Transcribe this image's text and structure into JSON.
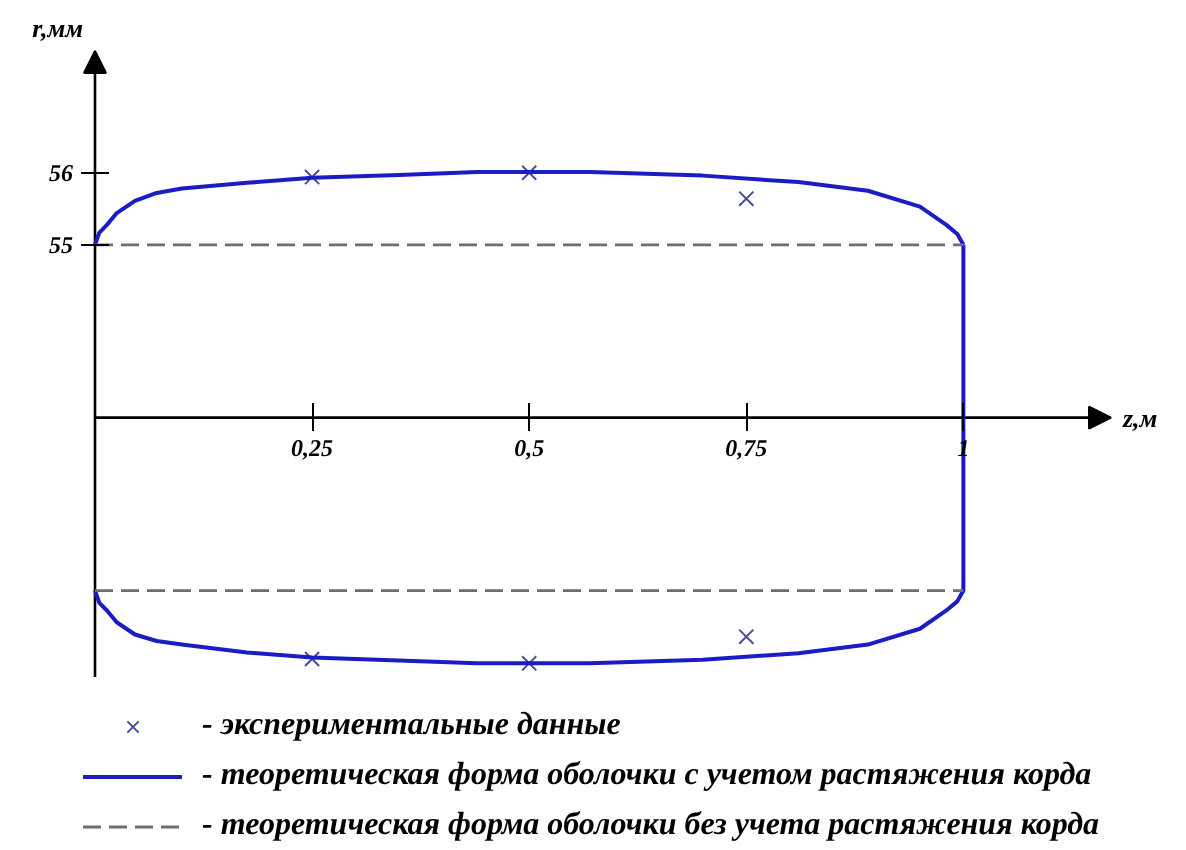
{
  "chart_data": {
    "type": "line",
    "xlabel": "z,м",
    "ylabel": "r,мм",
    "xlim": [
      0,
      1.17
    ],
    "ylim": [
      49.0,
      57.69
    ],
    "xticks": [
      {
        "value": 0.25,
        "label": "0,25"
      },
      {
        "value": 0.5,
        "label": "0,5"
      },
      {
        "value": 0.75,
        "label": "0,75"
      },
      1
    ],
    "yticks": [
      55,
      56
    ],
    "grid": false,
    "legend": "bottom",
    "series": [
      {
        "name": "- экспериментальные данные",
        "type": "scatter",
        "marker": "cross",
        "color": "#4b4b9b",
        "x": [
          0.25,
          0.5,
          0.75,
          0.25,
          0.5,
          0.75
        ],
        "values": [
          55.94,
          56.0,
          55.64,
          49.25,
          49.19,
          49.56
        ]
      },
      {
        "name": "- теоретическая форма оболочки с учетом растяжения корда",
        "line_style": "solid",
        "color": "#1c1cc4",
        "x": [
          0,
          0.005,
          0.014,
          0.025,
          0.046,
          0.071,
          0.1,
          0.175,
          0.25,
          0.35,
          0.44,
          0.57,
          0.7,
          0.81,
          0.89,
          0.95,
          0.98,
          0.993,
          1
        ],
        "values": [
          55,
          55.17,
          55.28,
          55.44,
          55.61,
          55.72,
          55.78,
          55.86,
          55.93,
          55.97,
          56.01,
          56.01,
          55.96,
          55.87,
          55.75,
          55.53,
          55.28,
          55.15,
          55
        ]
      },
      {
        "line_style": "solid",
        "color": "#1c1cc4",
        "x": [
          0,
          0.005,
          0.014,
          0.025,
          0.046,
          0.071,
          0.1,
          0.175,
          0.25,
          0.35,
          0.44,
          0.57,
          0.7,
          0.81,
          0.89,
          0.95,
          0.98,
          0.993,
          1,
          1
        ],
        "values": [
          50.2,
          50.03,
          49.92,
          49.76,
          49.59,
          49.5,
          49.45,
          49.34,
          49.27,
          49.23,
          49.19,
          49.19,
          49.24,
          49.33,
          49.45,
          49.67,
          49.92,
          50.05,
          50.2,
          55
        ]
      },
      {
        "name": "- теоретическая форма оболочки без учета растяжения корда",
        "line_style": "dashed",
        "color": "#6e6e6e",
        "x": [
          0,
          1
        ],
        "values": [
          55,
          55
        ]
      },
      {
        "line_style": "dashed",
        "color": "#6e6e6e",
        "x": [
          0,
          1
        ],
        "values": [
          50.2,
          50.2
        ]
      }
    ]
  }
}
